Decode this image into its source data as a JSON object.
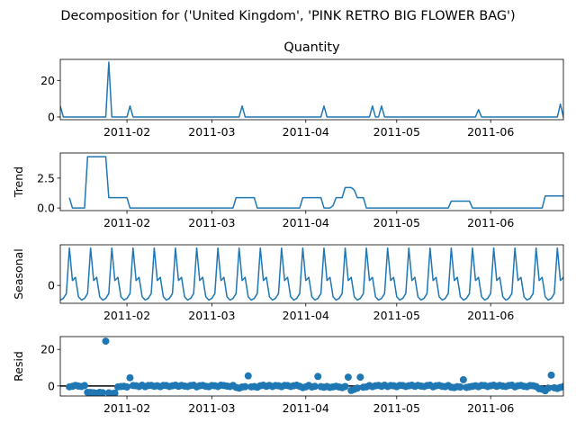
{
  "figure_title": "Decomposition for ('United Kingdom', 'PINK RETRO BIG FLOWER BAG')",
  "colors": {
    "line": "#1f77b4",
    "axis": "#000000",
    "background": "#ffffff"
  },
  "chart_data": [
    {
      "type": "line",
      "title": "Quantity",
      "ylabel": "",
      "xlim": [
        "2011-01-10",
        "2011-06-25"
      ],
      "ylim": [
        -1.5,
        31.5
      ],
      "yticks": [
        0,
        20
      ],
      "xticks": [
        "2011-02",
        "2011-03",
        "2011-04",
        "2011-05",
        "2011-06"
      ],
      "grid": false,
      "x_start": "2011-01-10",
      "values": [
        6,
        0,
        0,
        0,
        0,
        0,
        0,
        0,
        0,
        0,
        0,
        0,
        0,
        0,
        0,
        0,
        30,
        0,
        0,
        0,
        0,
        0,
        0,
        6,
        0,
        0,
        0,
        0,
        0,
        0,
        0,
        0,
        0,
        0,
        0,
        0,
        0,
        0,
        0,
        0,
        0,
        0,
        0,
        0,
        0,
        0,
        0,
        0,
        0,
        0,
        0,
        0,
        0,
        0,
        0,
        0,
        0,
        0,
        0,
        0,
        6,
        0,
        0,
        0,
        0,
        0,
        0,
        0,
        0,
        0,
        0,
        0,
        0,
        0,
        0,
        0,
        0,
        0,
        0,
        0,
        0,
        0,
        0,
        0,
        0,
        0,
        0,
        6,
        0,
        0,
        0,
        0,
        0,
        0,
        0,
        0,
        0,
        0,
        0,
        0,
        0,
        0,
        0,
        6,
        0,
        0,
        6,
        0,
        0,
        0,
        0,
        0,
        0,
        0,
        0,
        0,
        0,
        0,
        0,
        0,
        0,
        0,
        0,
        0,
        0,
        0,
        0,
        0,
        0,
        0,
        0,
        0,
        0,
        0,
        0,
        0,
        0,
        0,
        4,
        0,
        0,
        0,
        0,
        0,
        0,
        0,
        0,
        0,
        0,
        0,
        0,
        0,
        0,
        0,
        0,
        0,
        0,
        0,
        0,
        0,
        0,
        0,
        0,
        0,
        0,
        7,
        0,
        0,
        0,
        0,
        0,
        0,
        0,
        0,
        0,
        2,
        0,
        0,
        0,
        4,
        4
      ]
    },
    {
      "type": "line",
      "title": "",
      "ylabel": "Trend",
      "xlim": [
        "2011-01-10",
        "2011-06-25"
      ],
      "ylim": [
        -0.22,
        4.6
      ],
      "yticks": [
        0.0,
        2.5
      ],
      "ytick_labels": [
        "0.0",
        "2.5"
      ],
      "xticks": [
        "2011-02",
        "2011-03",
        "2011-04",
        "2011-05",
        "2011-06"
      ],
      "grid": false,
      "x_start": "2011-01-13",
      "values": [
        0.86,
        0,
        0,
        0,
        0,
        0,
        4.29,
        4.29,
        4.29,
        4.29,
        4.29,
        4.29,
        4.29,
        0.86,
        0.86,
        0.86,
        0.86,
        0.86,
        0.86,
        0.86,
        0,
        0,
        0,
        0,
        0,
        0,
        0,
        0,
        0,
        0,
        0,
        0,
        0,
        0,
        0,
        0,
        0,
        0,
        0,
        0,
        0,
        0,
        0,
        0,
        0,
        0,
        0,
        0,
        0,
        0,
        0,
        0,
        0,
        0,
        0,
        0.86,
        0.86,
        0.86,
        0.86,
        0.86,
        0.86,
        0.86,
        0,
        0,
        0,
        0,
        0,
        0,
        0,
        0,
        0,
        0,
        0,
        0,
        0,
        0,
        0,
        0.86,
        0.86,
        0.86,
        0.86,
        0.86,
        0.86,
        0.86,
        0,
        0,
        0,
        0.2,
        0.86,
        0.86,
        0.86,
        1.71,
        1.71,
        1.71,
        1.5,
        0.86,
        0.86,
        0.86,
        0,
        0,
        0,
        0,
        0,
        0,
        0,
        0,
        0,
        0,
        0,
        0,
        0,
        0,
        0,
        0,
        0,
        0,
        0,
        0,
        0,
        0,
        0,
        0,
        0,
        0,
        0,
        0,
        0.57,
        0.57,
        0.57,
        0.57,
        0.57,
        0.57,
        0.57,
        0,
        0,
        0,
        0,
        0,
        0,
        0,
        0,
        0,
        0,
        0,
        0,
        0,
        0,
        0,
        0,
        0,
        0,
        0,
        0,
        0,
        0,
        0,
        0,
        1,
        1,
        1,
        1,
        1,
        1,
        1,
        0,
        0.29,
        0.29,
        0.29,
        0.29,
        0.29,
        0.86,
        1.43
      ]
    },
    {
      "type": "line",
      "title": "",
      "ylabel": "Seasonal",
      "xlim": [
        "2011-01-10",
        "2011-06-25"
      ],
      "ylim": [
        -0.55,
        1.25
      ],
      "yticks": [
        0
      ],
      "xticks": [
        "2011-02",
        "2011-03",
        "2011-04",
        "2011-05",
        "2011-06"
      ],
      "grid": false,
      "x_start": "2011-01-10",
      "period_pattern": [
        1.15,
        0.15,
        0.25,
        -0.35,
        -0.45,
        -0.4,
        -0.25
      ],
      "pattern_offset": 4,
      "n_points": 167
    },
    {
      "type": "scatter",
      "title": "",
      "ylabel": "Resid",
      "xlim": [
        "2011-01-10",
        "2011-06-25"
      ],
      "ylim": [
        -5.5,
        27
      ],
      "yticks": [
        0,
        20
      ],
      "xticks": [
        "2011-02",
        "2011-03",
        "2011-04",
        "2011-05",
        "2011-06"
      ],
      "grid": false,
      "zero_line": true,
      "x_start": "2011-01-13",
      "values": [
        -0.5,
        -0.2,
        0.3,
        -0.1,
        -0.3,
        0.2,
        -3.5,
        -3.6,
        -3.7,
        -4,
        -3.5,
        -3.7,
        24.5,
        -3.8,
        -4.2,
        -3.9,
        -0.5,
        -0.3,
        -0.2,
        -0.6,
        4.5,
        0.2,
        0.1,
        -0.3,
        0.4,
        -0.4,
        0.2,
        0.3,
        -0.2,
        0.1,
        -0.4,
        0.3,
        0.2,
        -0.3,
        0.1,
        0.4,
        -0.2,
        0.3,
        -0.1,
        -0.3,
        0.2,
        0.4,
        -0.5,
        0.1,
        0.3,
        -0.2,
        -0.4,
        0.2,
        0.1,
        -0.3,
        0.4,
        0.2,
        -0.1,
        -0.3,
        0.3,
        -0.8,
        -1.2,
        -0.6,
        -0.4,
        5.5,
        -0.5,
        -0.3,
        -0.7,
        0.1,
        0.4,
        -0.2,
        0.3,
        -0.3,
        0.2,
        0.1,
        -0.4,
        0.3,
        0.2,
        -0.3,
        0.1,
        0.4,
        -0.2,
        -0.9,
        -0.5,
        0.3,
        -0.6,
        -0.2,
        5.2,
        -0.4,
        -0.7,
        -0.3,
        -0.8,
        -0.5,
        -0.2,
        -0.6,
        -0.9,
        -0.3,
        4.8,
        -2.5,
        -1.8,
        -1.2,
        4.8,
        -0.7,
        -0.5,
        0.2,
        -0.4,
        0.1,
        0.3,
        -0.2,
        0.4,
        -0.3,
        0.2,
        0.1,
        -0.4,
        0.3,
        0.2,
        -0.3,
        0.1,
        0.4,
        -0.2,
        0.3,
        -0.1,
        -0.3,
        0.2,
        0.4,
        -0.5,
        0.1,
        0.3,
        -0.2,
        -0.4,
        0.2,
        -0.7,
        -0.9,
        -0.4,
        -0.6,
        3.4,
        -0.8,
        -0.5,
        -0.2,
        0.1,
        -0.4,
        0.3,
        0.2,
        -0.3,
        0.1,
        0.4,
        -0.2,
        0.3,
        -0.1,
        -0.3,
        0.2,
        0.4,
        -0.5,
        0.1,
        0.3,
        -0.2,
        -0.4,
        0.2,
        0.1,
        -0.3,
        -1.5,
        -1.8,
        -2.6,
        -1.2,
        5.9,
        -1,
        -1.4,
        -0.8,
        -0.3,
        -0.6,
        1.8,
        0.2,
        -0.7,
        -1.5,
        -1.2,
        -1.8,
        -1.2
      ]
    }
  ]
}
